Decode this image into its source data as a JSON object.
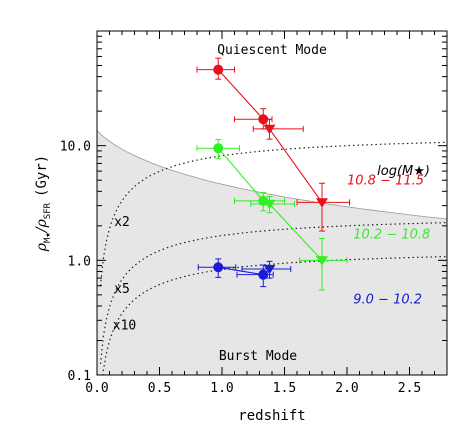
{
  "chart_data": {
    "type": "scatter",
    "xlabel": "redshift",
    "ylabel_main": "ρ",
    "ylabel_sub1": "M★",
    "ylabel_mid": "/ρ",
    "ylabel_sub2": "SFR",
    "ylabel_unit": "(Gyr)",
    "xlim": [
      0.0,
      2.8
    ],
    "ylim": [
      0.1,
      100
    ],
    "yscale": "log",
    "grid": false,
    "x_ticks": [
      "0.0",
      "0.5",
      "1.0",
      "1.5",
      "2.0",
      "2.5"
    ],
    "x_tick_values": [
      0.0,
      0.5,
      1.0,
      1.5,
      2.0,
      2.5
    ],
    "y_ticks": [
      "0.1",
      "1.0",
      "10.0"
    ],
    "y_tick_values": [
      0.1,
      1.0,
      10.0
    ],
    "region_labels": {
      "top": "Quiescent Mode",
      "bottom": "Burst Mode"
    },
    "legend_title": "log(M★)",
    "curve_labels": [
      {
        "text": "x2",
        "x": 0.2,
        "y": 2.0
      },
      {
        "text": "x5",
        "x": 0.2,
        "y": 0.52
      },
      {
        "text": "x10",
        "x": 0.22,
        "y": 0.25
      }
    ],
    "series": [
      {
        "name": "10.8 – 11.5",
        "label_text": "10.8 − 11.5",
        "color": "#e8101a",
        "label_pos": {
          "x": 2.0,
          "y": 4.6
        },
        "points": [
          {
            "x": 0.97,
            "y": 46,
            "xerr": [
              0.17,
              0.13
            ],
            "yerr": [
              8,
              12
            ],
            "marker": "circle"
          },
          {
            "x": 1.33,
            "y": 17,
            "xerr": [
              0.23,
              0.07
            ],
            "yerr": [
              3,
              4
            ],
            "marker": "circle"
          },
          {
            "x": 1.38,
            "y": 14,
            "xerr": [
              0.13,
              0.27
            ],
            "yerr": [
              2.6,
              3
            ],
            "marker": "triangle"
          },
          {
            "x": 1.8,
            "y": 3.2,
            "xerr": [
              0.2,
              0.22
            ],
            "yerr": [
              1.4,
              1.5
            ],
            "marker": "triangle"
          }
        ]
      },
      {
        "name": "10.2 – 10.8",
        "label_text": "10.2 − 10.8",
        "color": "#33ee22",
        "label_pos": {
          "x": 2.05,
          "y": 1.55
        },
        "points": [
          {
            "x": 0.97,
            "y": 9.5,
            "xerr": [
              0.17,
              0.17
            ],
            "yerr": [
              1.8,
              1.8
            ],
            "marker": "circle"
          },
          {
            "x": 1.33,
            "y": 3.3,
            "xerr": [
              0.23,
              0.17
            ],
            "yerr": [
              0.6,
              0.6
            ],
            "marker": "circle"
          },
          {
            "x": 1.38,
            "y": 3.1,
            "xerr": [
              0.15,
              0.2
            ],
            "yerr": [
              0.5,
              0.5
            ],
            "marker": "triangle"
          },
          {
            "x": 1.8,
            "y": 1.0,
            "xerr": [
              0.18,
              0.2
            ],
            "yerr": [
              0.45,
              0.55
            ],
            "marker": "triangle"
          }
        ]
      },
      {
        "name": "9.0 – 10.2",
        "label_text": "9.0 − 10.2",
        "color": "#1a1ad8",
        "label_pos": {
          "x": 2.05,
          "y": 0.42
        },
        "points": [
          {
            "x": 0.97,
            "y": 0.87,
            "xerr": [
              0.16,
              0.14
            ],
            "yerr": [
              0.16,
              0.16
            ],
            "marker": "circle"
          },
          {
            "x": 1.33,
            "y": 0.75,
            "xerr": [
              0.21,
              0.08
            ],
            "yerr": [
              0.16,
              0.16
            ],
            "marker": "circle"
          },
          {
            "x": 1.38,
            "y": 0.84,
            "xerr": [
              0.22,
              0.17
            ],
            "yerr": [
              0.14,
              0.14
            ],
            "marker": "triangle"
          }
        ]
      }
    ]
  }
}
